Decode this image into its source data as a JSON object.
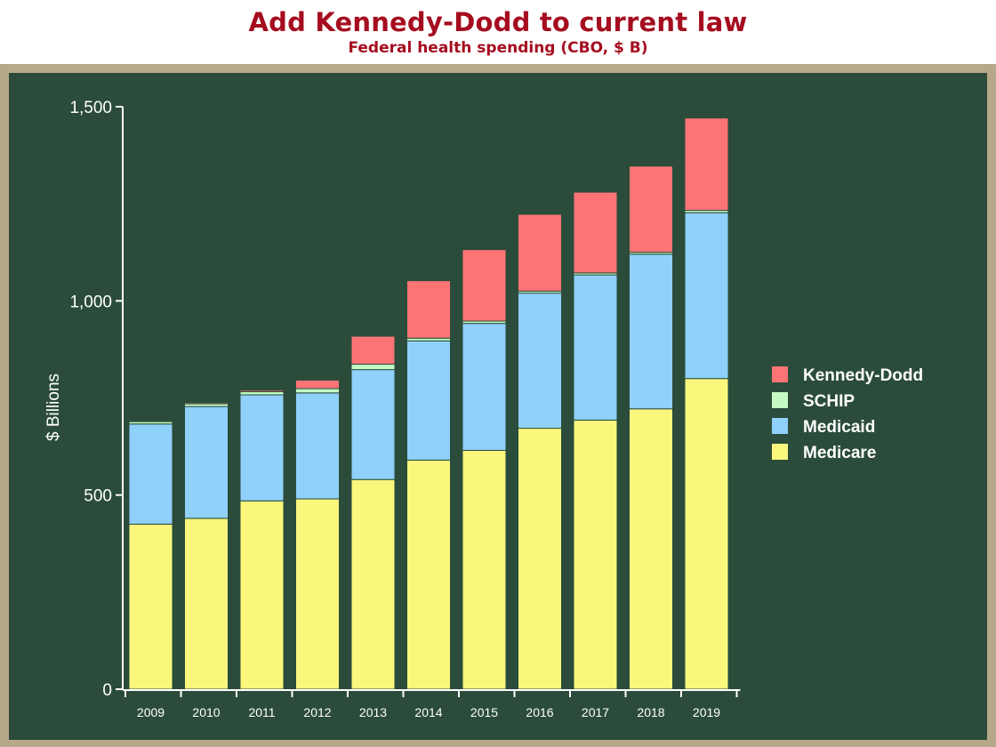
{
  "title": "Add Kennedy-Dodd to current law",
  "subtitle": "Federal health spending (CBO, $ B)",
  "colors": {
    "background": "#2b4c3b",
    "frame": "#b8a88a",
    "title": "#a50d1f",
    "Medicare": "#fbf77d",
    "Medicaid": "#8fd1fb",
    "SCHIP": "#c3fbc3",
    "Kennedy-Dodd": "#fd7476"
  },
  "chart_data": {
    "type": "bar",
    "stacked": true,
    "title": "Add Kennedy-Dodd to current law",
    "subtitle": "Federal health spending (CBO, $ B)",
    "xlabel": "",
    "ylabel": "$ Billions",
    "ylim": [
      0,
      1500
    ],
    "yticks": [
      0,
      500,
      1000,
      1500
    ],
    "ytick_labels": [
      "0",
      "500",
      "1,000",
      "1,500"
    ],
    "grid": false,
    "legend_position": "right",
    "categories": [
      "2009",
      "2010",
      "2011",
      "2012",
      "2013",
      "2014",
      "2015",
      "2016",
      "2017",
      "2018",
      "2019"
    ],
    "series": [
      {
        "name": "Medicare",
        "values": [
          425,
          440,
          485,
          490,
          540,
          590,
          615,
          672,
          693,
          722,
          800
        ]
      },
      {
        "name": "Medicaid",
        "values": [
          258,
          288,
          273,
          273,
          283,
          307,
          327,
          348,
          374,
          398,
          427
        ]
      },
      {
        "name": "SCHIP",
        "values": [
          6,
          7,
          8,
          11,
          14,
          7,
          6,
          5,
          5,
          5,
          6
        ]
      },
      {
        "name": "Kennedy-Dodd",
        "values": [
          0,
          3,
          4,
          22,
          72,
          148,
          184,
          198,
          208,
          222,
          238
        ]
      }
    ],
    "legend_order": [
      "Kennedy-Dodd",
      "SCHIP",
      "Medicaid",
      "Medicare"
    ]
  }
}
